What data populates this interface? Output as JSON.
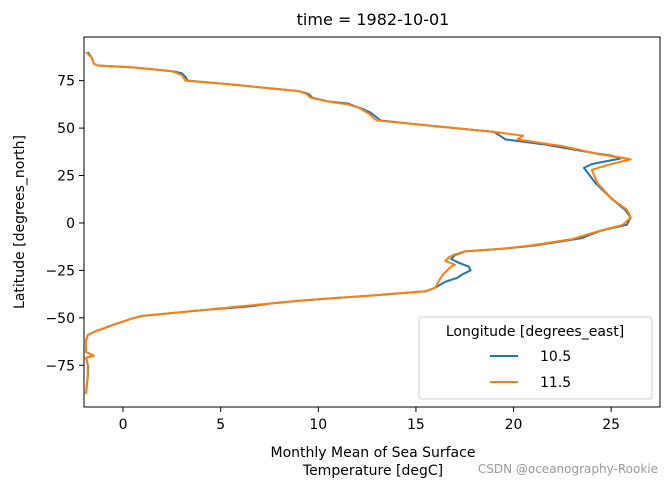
{
  "chart_data": {
    "type": "line",
    "title": "time = 1982-10-01",
    "xlabel_line1": "Monthly Mean of Sea Surface",
    "xlabel_line2": "Temperature [degC]",
    "ylabel": "Latitude [degrees_north]",
    "xlim": [
      -2,
      27.5
    ],
    "ylim": [
      -97,
      98
    ],
    "xticks": [
      0,
      5,
      10,
      15,
      20,
      25
    ],
    "yticks": [
      75,
      50,
      25,
      0,
      -25,
      -50,
      -75
    ],
    "ytick_labels": [
      "75",
      "50",
      "25",
      "0",
      "−25",
      "−50",
      "−75"
    ],
    "grid": false,
    "legend": {
      "title": "Longitude [degrees_east]",
      "placement": "lower-right"
    },
    "series": [
      {
        "name": "10.5",
        "color": "#1f77b4",
        "points": [
          [
            -1.8,
            90
          ],
          [
            -1.6,
            87
          ],
          [
            -1.5,
            84
          ],
          [
            -1.3,
            83
          ],
          [
            0.5,
            82
          ],
          [
            1.5,
            81
          ],
          [
            2.5,
            80
          ],
          [
            3.0,
            79
          ],
          [
            3.2,
            77
          ],
          [
            3.3,
            75
          ],
          [
            5.5,
            73
          ],
          [
            7.5,
            71
          ],
          [
            9.0,
            69.5
          ],
          [
            9.5,
            68
          ],
          [
            9.7,
            66
          ],
          [
            10.5,
            64
          ],
          [
            11.5,
            63
          ],
          [
            12.0,
            61
          ],
          [
            12.3,
            60
          ],
          [
            12.7,
            58
          ],
          [
            13.0,
            55.5
          ],
          [
            13.2,
            54
          ],
          [
            15.0,
            52
          ],
          [
            17.0,
            50
          ],
          [
            19.0,
            48
          ],
          [
            19.3,
            46
          ],
          [
            19.6,
            44
          ],
          [
            21.5,
            41.5
          ],
          [
            24.0,
            37
          ],
          [
            25.0,
            35.5
          ],
          [
            25.5,
            34
          ],
          [
            24.0,
            31
          ],
          [
            23.6,
            29
          ],
          [
            24.2,
            21
          ],
          [
            25.0,
            13
          ],
          [
            25.7,
            7
          ],
          [
            26.0,
            3
          ],
          [
            25.8,
            -1
          ],
          [
            24.5,
            -4
          ],
          [
            23.5,
            -8
          ],
          [
            21.0,
            -12
          ],
          [
            19.5,
            -13.5
          ],
          [
            17.5,
            -15
          ],
          [
            17.0,
            -17
          ],
          [
            16.8,
            -19
          ],
          [
            17.2,
            -21
          ],
          [
            17.7,
            -23
          ],
          [
            17.8,
            -25
          ],
          [
            17.4,
            -27
          ],
          [
            17.1,
            -29
          ],
          [
            16.5,
            -31
          ],
          [
            16.0,
            -34
          ],
          [
            15.5,
            -36
          ],
          [
            13.0,
            -38
          ],
          [
            11.0,
            -39.5
          ],
          [
            9.0,
            -41
          ],
          [
            7.5,
            -42.5
          ],
          [
            6.5,
            -44
          ],
          [
            4.0,
            -46
          ],
          [
            1.0,
            -49
          ],
          [
            0.4,
            -50.5
          ],
          [
            0.0,
            -52
          ],
          [
            -0.6,
            -54
          ],
          [
            -1.1,
            -56
          ],
          [
            -1.4,
            -57
          ],
          [
            -1.8,
            -59
          ],
          [
            -1.9,
            -62
          ],
          [
            -1.9,
            -68
          ],
          [
            -1.5,
            -70
          ],
          [
            -1.9,
            -71
          ],
          [
            -1.8,
            -75
          ],
          [
            -1.8,
            -80
          ],
          [
            -1.9,
            -90
          ]
        ]
      },
      {
        "name": "11.5",
        "color": "#ff7f0e",
        "points": [
          [
            -1.9,
            90
          ],
          [
            -1.6,
            87
          ],
          [
            -1.5,
            84
          ],
          [
            -1.3,
            83
          ],
          [
            0.5,
            82
          ],
          [
            1.5,
            81
          ],
          [
            2.5,
            80
          ],
          [
            3.0,
            78
          ],
          [
            3.1,
            76.5
          ],
          [
            3.2,
            75
          ],
          [
            5.5,
            73
          ],
          [
            7.5,
            71
          ],
          [
            9.0,
            69.5
          ],
          [
            9.4,
            68
          ],
          [
            9.6,
            66
          ],
          [
            10.5,
            64
          ],
          [
            11.5,
            62.5
          ],
          [
            12.0,
            61
          ],
          [
            12.3,
            59.5
          ],
          [
            12.6,
            57.5
          ],
          [
            12.8,
            55.5
          ],
          [
            13.0,
            54
          ],
          [
            15.0,
            52
          ],
          [
            17.0,
            50
          ],
          [
            19.0,
            48
          ],
          [
            20.5,
            46
          ],
          [
            20.2,
            44
          ],
          [
            22.5,
            40.5
          ],
          [
            24.5,
            36
          ],
          [
            25.5,
            34.5
          ],
          [
            26.0,
            33.5
          ],
          [
            25.0,
            31
          ],
          [
            24.0,
            28
          ],
          [
            24.3,
            21
          ],
          [
            25.0,
            13
          ],
          [
            25.8,
            7
          ],
          [
            26.0,
            3
          ],
          [
            25.6,
            -1
          ],
          [
            24.3,
            -4.5
          ],
          [
            23.0,
            -8.5
          ],
          [
            20.8,
            -12
          ],
          [
            19.5,
            -13.5
          ],
          [
            17.5,
            -15
          ],
          [
            17.0,
            -16.5
          ],
          [
            16.7,
            -18
          ],
          [
            16.5,
            -20
          ],
          [
            17.0,
            -22
          ],
          [
            16.8,
            -23
          ],
          [
            16.6,
            -25
          ],
          [
            16.4,
            -27
          ],
          [
            16.2,
            -30
          ],
          [
            16.0,
            -34
          ],
          [
            15.5,
            -36
          ],
          [
            13.0,
            -38
          ],
          [
            11.0,
            -39.5
          ],
          [
            9.0,
            -41
          ],
          [
            7.0,
            -43
          ],
          [
            6.0,
            -44
          ],
          [
            4.0,
            -46
          ],
          [
            1.0,
            -49
          ],
          [
            0.4,
            -50.5
          ],
          [
            0.0,
            -52
          ],
          [
            -0.6,
            -54
          ],
          [
            -1.1,
            -56
          ],
          [
            -1.4,
            -57
          ],
          [
            -1.8,
            -59
          ],
          [
            -1.9,
            -62
          ],
          [
            -1.9,
            -68
          ],
          [
            -1.5,
            -70
          ],
          [
            -1.9,
            -71
          ],
          [
            -1.8,
            -75
          ],
          [
            -1.8,
            -80
          ],
          [
            -1.9,
            -90
          ]
        ]
      }
    ]
  },
  "watermark": "CSDN @oceanography-Rookie"
}
